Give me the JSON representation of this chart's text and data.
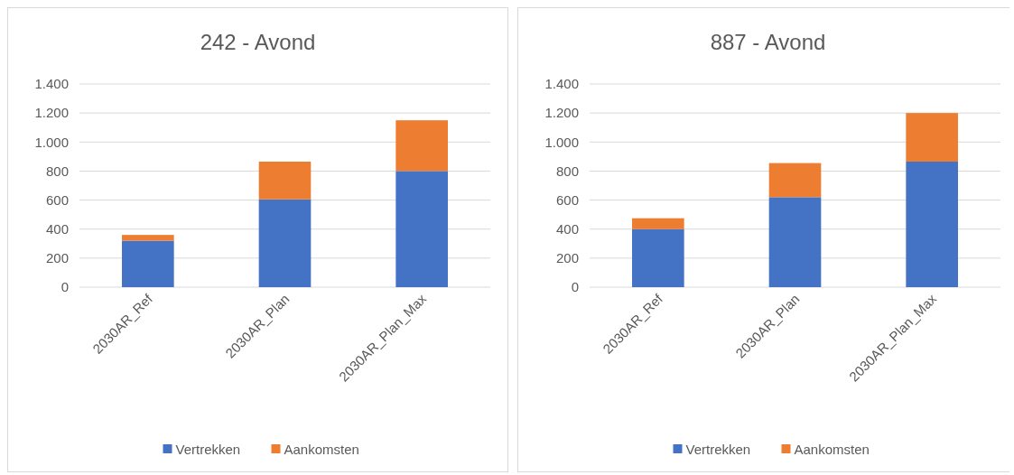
{
  "chart_data": [
    {
      "type": "bar",
      "title": "242 - Avond",
      "categories": [
        "2030AR_Ref",
        "2030AR_Plan",
        "2030AR_Plan_Max"
      ],
      "stacked": true,
      "series": [
        {
          "name": "Vertrekken",
          "color": "#4472c4",
          "values": [
            320,
            605,
            800
          ]
        },
        {
          "name": "Aankomsten",
          "color": "#ed7d31",
          "values": [
            40,
            260,
            350
          ]
        }
      ],
      "ylim": [
        0,
        1400
      ],
      "yticks": [
        0,
        200,
        400,
        600,
        800,
        {
          "value": 1000,
          "label": "1.000"
        },
        {
          "value": 1200,
          "label": "1.200"
        },
        {
          "value": 1400,
          "label": "1.400"
        }
      ],
      "grid": "y",
      "legend": "bottom"
    },
    {
      "type": "bar",
      "title": "887 - Avond",
      "categories": [
        "2030AR_Ref",
        "2030AR_Plan",
        "2030AR_Plan_Max"
      ],
      "stacked": true,
      "series": [
        {
          "name": "Vertrekken",
          "color": "#4472c4",
          "values": [
            400,
            620,
            865
          ]
        },
        {
          "name": "Aankomsten",
          "color": "#ed7d31",
          "values": [
            75,
            235,
            335
          ]
        }
      ],
      "ylim": [
        0,
        1400
      ],
      "yticks": [
        0,
        200,
        400,
        600,
        800,
        {
          "value": 1000,
          "label": "1.000"
        },
        {
          "value": 1200,
          "label": "1.200"
        },
        {
          "value": 1400,
          "label": "1.400"
        }
      ],
      "grid": "y",
      "legend": "bottom"
    }
  ]
}
